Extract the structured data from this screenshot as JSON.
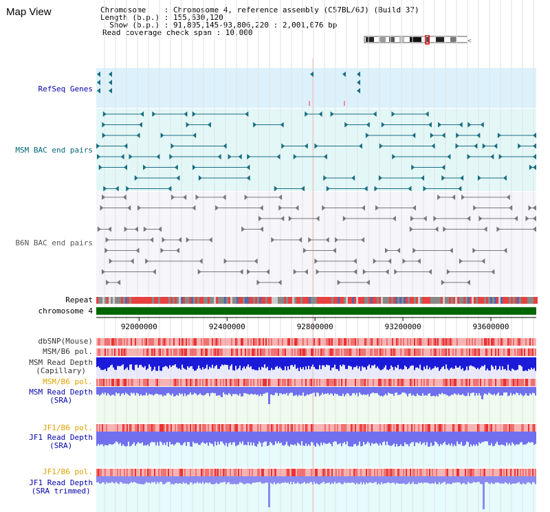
{
  "title": "Map View",
  "info": {
    "chromosome": "Chromosome    : Chromosome 4, reference assembly (C57BL/6J) (Build 37)",
    "length": "Length (b.p.) : 155,630,120",
    "show": "  Show (b.p.) : 91,805,145-93,806,220 : 2,001,076 bp",
    "span": "Read coverage check span : 10,000"
  },
  "labels": {
    "refseq": "RefSeq Genes",
    "msm_bac": "MSM BAC end pairs",
    "b6n_bac": "B6N BAC end pairs",
    "repeat": "Repeat",
    "chromosome": "chromosome 4",
    "dbsnp": "dbSNP(Mouse)",
    "msm_b6_pol": "MSM/B6 pol.",
    "msm_depth_cap_1": "MSM Read Depth",
    "msm_depth_cap_2": "(Capillary)",
    "msm_b6_pol_2": "MSM/B6 pol.",
    "msm_depth_sra_1": "MSM Read Depth",
    "msm_depth_sra_2": "(SRA)",
    "jf1_b6_pol": "JF1/B6 pol.",
    "jf1_depth_sra_1": "JF1 Read Depth",
    "jf1_depth_sra_2": "(SRA)",
    "jf1_b6_pol_2": "JF1/B6 pol.",
    "jf1_depth_trim_1": "JF1 Read Depth",
    "jf1_depth_trim_2": "(SRA trimmed)"
  },
  "axis": {
    "ticks": [
      "92000000",
      "92400000",
      "92800000",
      "93200000",
      "93600000"
    ],
    "tick_values": [
      92000000,
      92400000,
      92800000,
      93200000,
      93600000
    ],
    "start": 91805145,
    "end": 93806220
  },
  "colors": {
    "refseq_band": "#dcf1fb",
    "msm_band": "#e3f7f7",
    "b6n_band": "#f5f5fa",
    "msm_feature": "#1a6d80",
    "b6n_feature": "#777777",
    "chromosome_bar": "#006600",
    "label_blue": "#0000aa",
    "label_teal": "#006677",
    "label_orange": "#e0a000",
    "depth_dark": "#1a1ad8",
    "depth_light": "#7070ee"
  }
}
